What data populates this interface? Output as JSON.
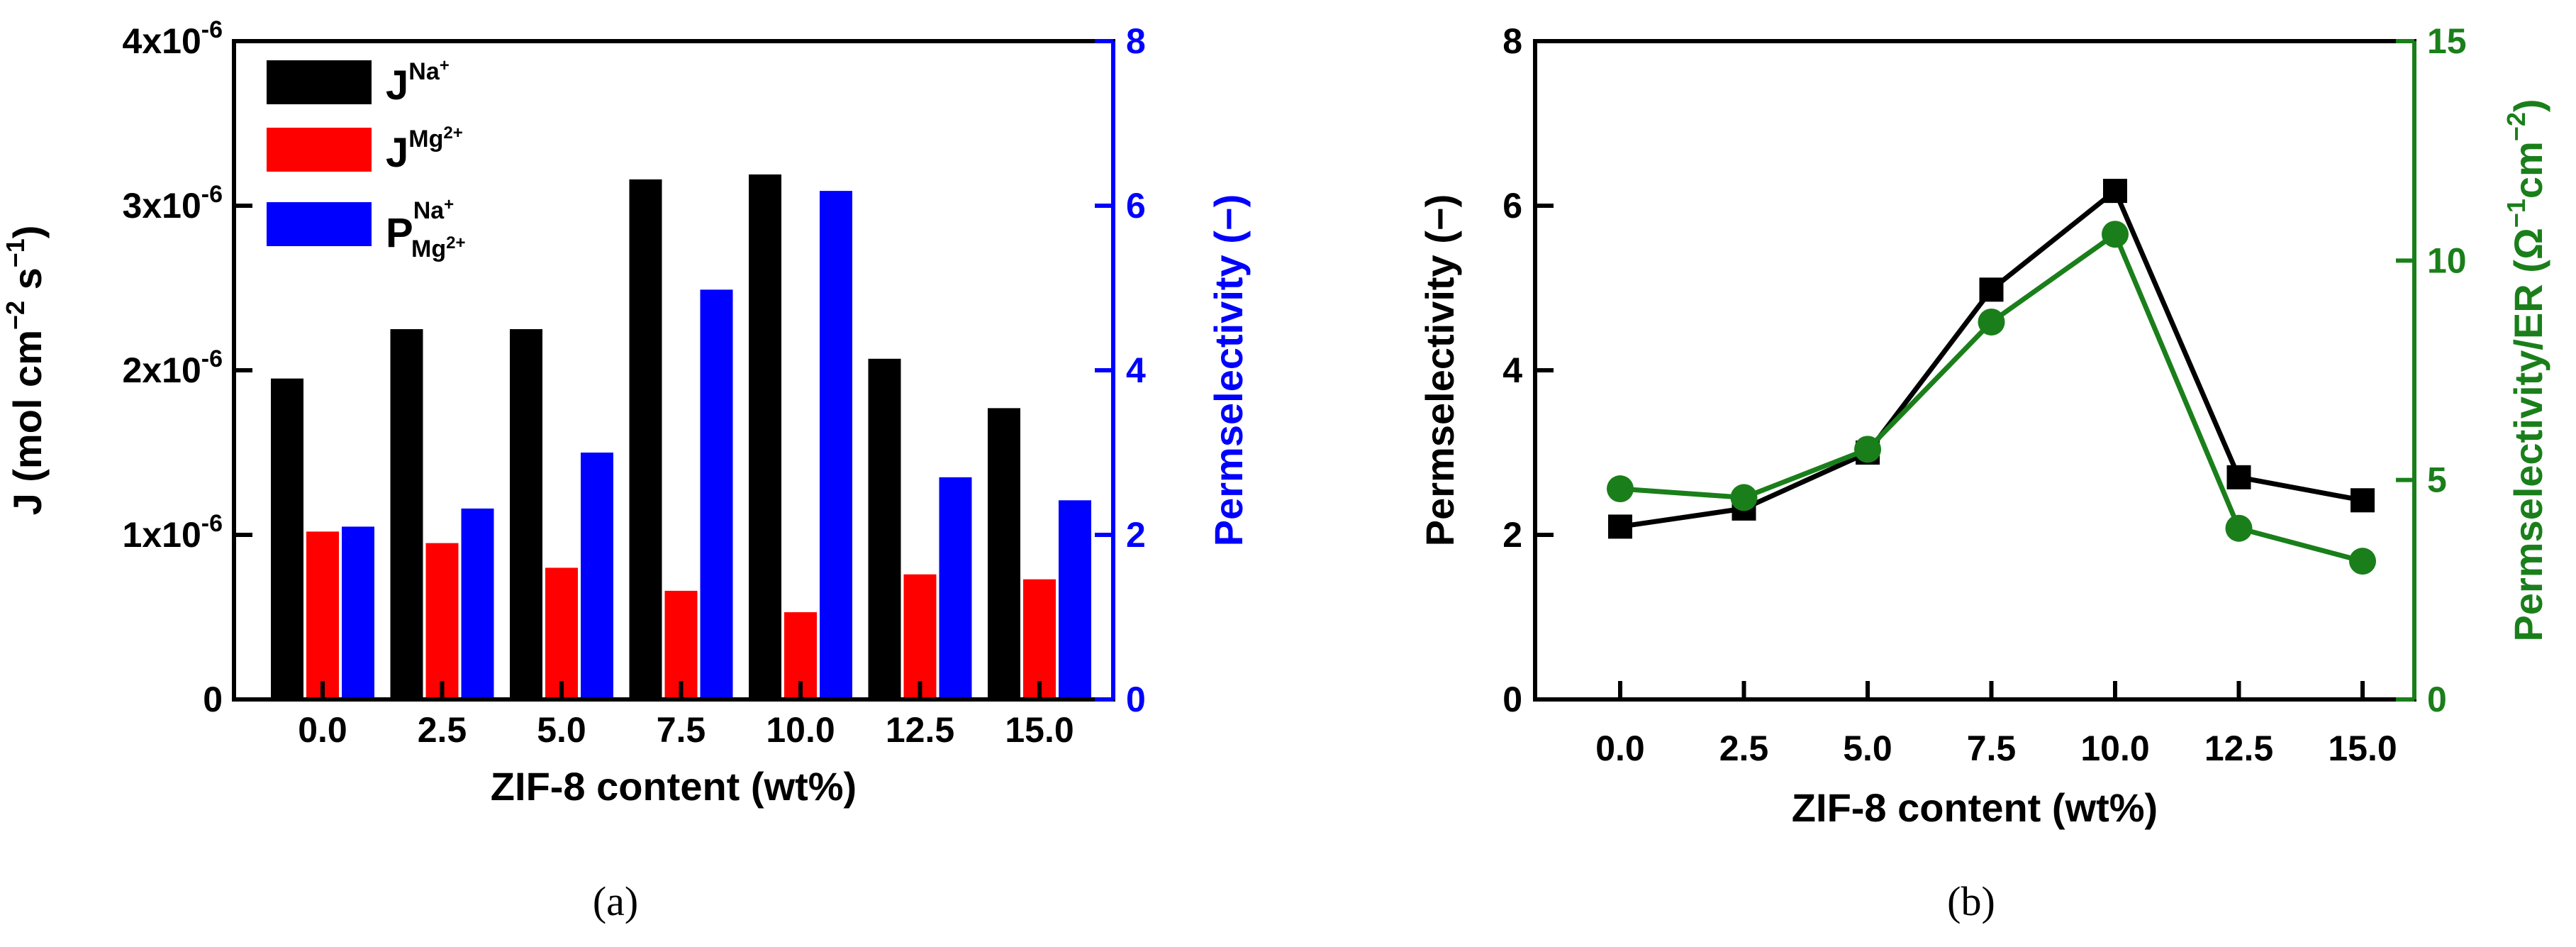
{
  "colors": {
    "na": "#000000",
    "mg": "#ff0000",
    "perm": "#0000ff",
    "green": "#1a7f1a",
    "black": "#000000"
  },
  "chart_data": [
    {
      "type": "bar",
      "caption": "(a)",
      "xlabel": "ZIF-8 content (wt%)",
      "categories": [
        "0.0",
        "2.5",
        "5.0",
        "7.5",
        "10.0",
        "12.5",
        "15.0"
      ],
      "ylabel_left": {
        "main": "J (mol cm",
        "e1": "−2",
        "mid": " s",
        "e2": "−1",
        "end": ")"
      },
      "ylim_left": [
        0,
        4e-06
      ],
      "yticks_left": [
        {
          "v": 0,
          "m": "0",
          "e": ""
        },
        {
          "v": 1e-06,
          "m": "1x10",
          "e": "-6"
        },
        {
          "v": 2e-06,
          "m": "2x10",
          "e": "-6"
        },
        {
          "v": 3e-06,
          "m": "3x10",
          "e": "-6"
        },
        {
          "v": 4e-06,
          "m": "4x10",
          "e": "-6"
        }
      ],
      "ylabel_right": "Permselectivity (−)",
      "ylim_right": [
        0,
        8
      ],
      "yticks_right": [
        "0",
        "2",
        "4",
        "6",
        "8"
      ],
      "series": [
        {
          "name": "J_Na+",
          "axis": "left",
          "color": "#000000",
          "values": [
            1.95e-06,
            2.25e-06,
            2.25e-06,
            3.16e-06,
            3.19e-06,
            2.07e-06,
            1.77e-06
          ]
        },
        {
          "name": "J_Mg2+",
          "axis": "left",
          "color": "#ff0000",
          "values": [
            1.02e-06,
            9.5e-07,
            8e-07,
            6.6e-07,
            5.3e-07,
            7.6e-07,
            7.3e-07
          ]
        },
        {
          "name": "P_Na+/Mg2+",
          "axis": "right",
          "color": "#0000ff",
          "values": [
            2.1,
            2.32,
            3.0,
            4.98,
            6.18,
            2.7,
            2.42
          ]
        }
      ],
      "legend": [
        {
          "J": "J",
          "sup": "Na",
          "sup2": "+",
          "sub": "",
          "sub2": ""
        },
        {
          "J": "J",
          "sup": "Mg",
          "sup2": "2+",
          "sub": "",
          "sub2": ""
        },
        {
          "J": "P",
          "sup": "Na",
          "sup2": "+",
          "sub": "Mg",
          "sub2": "2+"
        }
      ],
      "legend_position": "top-left"
    },
    {
      "type": "line",
      "caption": "(b)",
      "xlabel": "ZIF-8 content (wt%)",
      "categories": [
        "0.0",
        "2.5",
        "5.0",
        "7.5",
        "10.0",
        "12.5",
        "15.0"
      ],
      "ylabel_left": "Permselectivity (−)",
      "ylim_left": [
        0,
        8
      ],
      "yticks_left": [
        "0",
        "2",
        "4",
        "6",
        "8"
      ],
      "ylabel_right": {
        "main": "Permselectivity/ER (Ω",
        "e1": "−1",
        "mid": "cm",
        "e2": "−2",
        "end": ")"
      },
      "ylim_right": [
        0,
        15
      ],
      "yticks_right": [
        "0",
        "5",
        "10",
        "15"
      ],
      "series": [
        {
          "name": "Permselectivity",
          "axis": "left",
          "marker": "square",
          "color": "#000000",
          "values": [
            2.1,
            2.32,
            3.0,
            4.98,
            6.18,
            2.7,
            2.42
          ]
        },
        {
          "name": "Permselectivity/ER",
          "axis": "right",
          "marker": "circle",
          "color": "#1a7f1a",
          "values": [
            4.8,
            4.6,
            5.7,
            8.6,
            10.6,
            3.9,
            3.15
          ]
        }
      ]
    }
  ]
}
